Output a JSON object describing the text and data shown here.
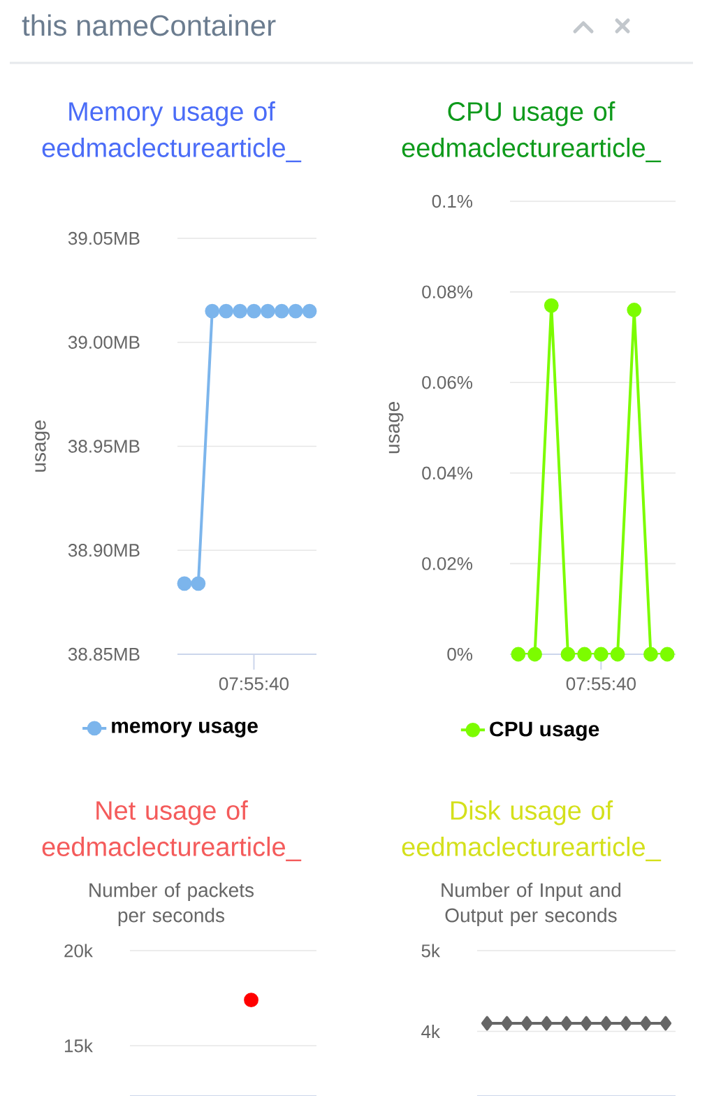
{
  "chart_data": [
    {
      "type": "other",
      "title": "this nameContainer"
    },
    {
      "type": "line",
      "title": "Memory usage of eedmaclecturearticle_",
      "ylabel": "usage",
      "categories": [
        null,
        null,
        null,
        null,
        null,
        "07:55:40",
        null,
        null,
        null,
        null
      ],
      "series": [
        {
          "name": "memory usage",
          "color": "#7cb5ec",
          "values": [
            38.884,
            38.884,
            39.015,
            39.015,
            39.015,
            39.015,
            39.015,
            39.015,
            39.015,
            39.015
          ]
        }
      ],
      "ylim": [
        38.85,
        39.05
      ],
      "yticks": [
        {
          "value": 38.85,
          "label": "38.85MB"
        },
        {
          "value": 38.9,
          "label": "38.90MB"
        },
        {
          "value": 38.95,
          "label": "38.95MB"
        },
        {
          "value": 39.0,
          "label": "39.00MB"
        },
        {
          "value": 39.05,
          "label": "39.05MB"
        }
      ],
      "grid": "y",
      "legend": "bottom",
      "marker": "circle"
    },
    {
      "type": "line",
      "title": "CPU usage of eedmaclecturearticle_",
      "ylabel": "usage",
      "categories": [
        null,
        null,
        null,
        null,
        null,
        "07:55:40",
        null,
        null,
        null,
        null
      ],
      "series": [
        {
          "name": "CPU usage",
          "color": "#7cfc00",
          "values": [
            0,
            0,
            0.077,
            0,
            0,
            0,
            0,
            0.076,
            0,
            0
          ]
        }
      ],
      "ylim": [
        0,
        0.1
      ],
      "yticks": [
        {
          "value": 0,
          "label": "0%"
        },
        {
          "value": 0.02,
          "label": "0.02%"
        },
        {
          "value": 0.04,
          "label": "0.04%"
        },
        {
          "value": 0.06,
          "label": "0.06%"
        },
        {
          "value": 0.08,
          "label": "0.08%"
        },
        {
          "value": 0.1,
          "label": "0.1%"
        }
      ],
      "grid": "y",
      "legend": "bottom",
      "marker": "circle"
    },
    {
      "type": "line",
      "title": "Net usage of eedmaclecturearticle_",
      "ylabel": "Number of packets per seconds",
      "categories": [
        null,
        null,
        null,
        null,
        null,
        null,
        null,
        null,
        null,
        null
      ],
      "series": [
        {
          "color": "#ff0000",
          "values": [
            null,
            null,
            null,
            null,
            null,
            null,
            17400,
            null,
            null,
            null
          ]
        }
      ],
      "ylim": [
        12350,
        20000
      ],
      "yticks": [
        {
          "value": 15000,
          "label": "15k"
        },
        {
          "value": 20000,
          "label": "20k"
        }
      ],
      "grid": "y",
      "marker": "circle"
    },
    {
      "type": "line",
      "title": "Disk usage of eedmaclecturearticle_",
      "ylabel": "Number of Input and Output per seconds",
      "categories": [
        null,
        null,
        null,
        null,
        null,
        null,
        null,
        null,
        null,
        null
      ],
      "series": [
        {
          "color": "#666666",
          "values": [
            4100,
            4100,
            4100,
            4100,
            4100,
            4100,
            4100,
            4100,
            4100,
            4100
          ]
        }
      ],
      "ylim": [
        3200,
        5000
      ],
      "yticks": [
        {
          "value": 4000,
          "label": "4k"
        },
        {
          "value": 5000,
          "label": "5k"
        }
      ],
      "grid": "y",
      "marker": "diamond"
    }
  ]
}
